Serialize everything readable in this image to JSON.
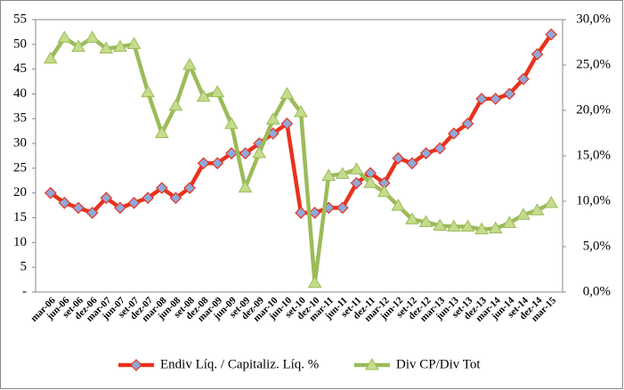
{
  "chart_data": {
    "type": "line",
    "categories": [
      "mar-06",
      "jun-06",
      "set-06",
      "dez-06",
      "mar-07",
      "jun-07",
      "set-07",
      "dez-07",
      "mar-08",
      "jun-08",
      "set-08",
      "dez-08",
      "mar-09",
      "jun-09",
      "set-09",
      "dez-09",
      "mar-10",
      "jun-10",
      "set-10",
      "dez-10",
      "mar-11",
      "jun-11",
      "set-11",
      "dez-11",
      "mar-12",
      "jun-12",
      "set-12",
      "dez-12",
      "mar-13",
      "jun-13",
      "set-13",
      "dez-13",
      "mar-14",
      "jun-14",
      "set-14",
      "dez-14",
      "mar-15"
    ],
    "series": [
      {
        "name": "Endiv Líq. / Capitaliz. Líq. %",
        "color": "#e8321e",
        "marker_color": "#8ea9db",
        "values": [
          20,
          18,
          17,
          16,
          19,
          17,
          18,
          19,
          21,
          19,
          21,
          26,
          26,
          28,
          28,
          30,
          32,
          34,
          16,
          16,
          17,
          17,
          22,
          24,
          22,
          27,
          26,
          28,
          29,
          32,
          34,
          39,
          39,
          40,
          43,
          48,
          52
        ]
      },
      {
        "name": "Div CP/Div Tot",
        "color": "#9bbb59",
        "marker_color": "#c4dc8c",
        "axis": "y2",
        "values": [
          25.7,
          28,
          27,
          28,
          26.8,
          27,
          27.3,
          22,
          17.5,
          20.5,
          25,
          21.5,
          22,
          18.5,
          11.5,
          15.3,
          19,
          21.8,
          19.8,
          1,
          12.8,
          13,
          13.5,
          12,
          11,
          9.5,
          8,
          7.7,
          7.3,
          7.2,
          7.2,
          6.9,
          7,
          7.6,
          8.5,
          9,
          9.8
        ]
      }
    ],
    "ylim": [
      0,
      55
    ],
    "yticks": [
      {
        "value": 0,
        "label": "-"
      },
      5,
      10,
      15,
      20,
      25,
      30,
      35,
      40,
      45,
      50,
      55
    ],
    "y2lim": [
      0,
      30
    ],
    "y2ticks": [
      {
        "value": 0,
        "label": "0,0%"
      },
      {
        "value": 5,
        "label": "5,0%"
      },
      {
        "value": 10,
        "label": "10,0%"
      },
      {
        "value": 15,
        "label": "15,0%"
      },
      {
        "value": 20,
        "label": "20,0%"
      },
      {
        "value": 25,
        "label": "25,0%"
      },
      {
        "value": 30,
        "label": "30,0%"
      }
    ],
    "legend": "bottom"
  }
}
